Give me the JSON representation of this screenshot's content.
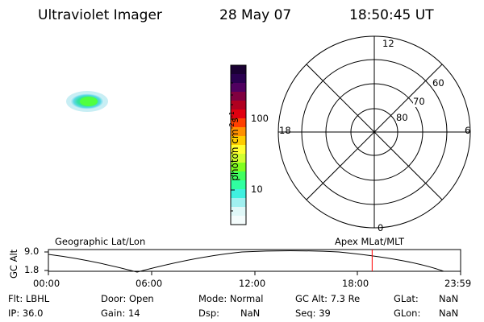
{
  "header": {
    "title": "Ultraviolet Imager",
    "date": "28 May 07",
    "time": "18:50:45 UT"
  },
  "colorbar": {
    "label": "photon cm⁻²s⁻¹",
    "label_main": "photon cm",
    "label_exp1": "-2",
    "label_mid": "s",
    "label_exp2": "-1",
    "ticks": [
      "100",
      "10"
    ],
    "colors": [
      "#1a0033",
      "#2a0050",
      "#500060",
      "#800040",
      "#b00020",
      "#e00010",
      "#ff4000",
      "#ff9000",
      "#ffcc00",
      "#ffff30",
      "#d0ff30",
      "#80ff20",
      "#40ff60",
      "#30ffa0",
      "#40f0e0",
      "#a0f0f0",
      "#e0f8f8",
      "#f4fcfc"
    ]
  },
  "polar_plot": {
    "mlt_labels": {
      "top": "12",
      "left": "18",
      "right": "6",
      "bottom": "0"
    },
    "lat_labels": [
      "60",
      "70",
      "80"
    ]
  },
  "timeline": {
    "left_label": "Geographic Lat/Lon",
    "right_label": "Apex MLat/MLT",
    "axis_title": "GC Alt",
    "y_ticks": [
      "9.0",
      "1.8"
    ],
    "x_ticks": [
      "00:00",
      "06:00",
      "12:00",
      "18:00",
      "23:59"
    ],
    "current_time_hours": 18.85,
    "marker_color": "#ff0000"
  },
  "info": {
    "row1": {
      "flt": "Flt: LBHL",
      "door": "Door: Open",
      "mode": "Mode: Normal",
      "gcalt": "GC Alt: 7.3 Re",
      "glat_label": "GLat:",
      "glat_value": "NaN"
    },
    "row2": {
      "ip": "IP: 36.0",
      "gain": "Gain: 14",
      "dsp_label": "Dsp:",
      "dsp_value": "NaN",
      "seq": "Seq: 39",
      "glon_label": "GLon:",
      "glon_value": "NaN"
    }
  }
}
